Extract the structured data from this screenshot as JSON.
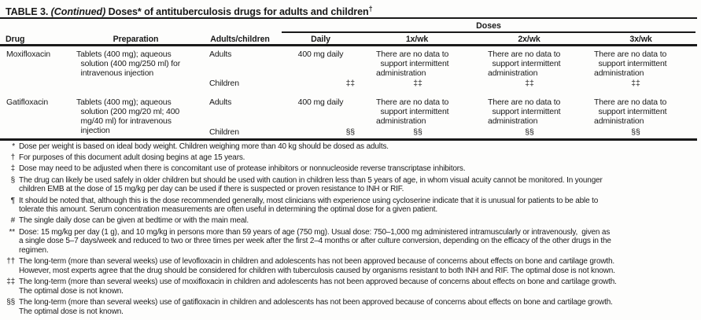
{
  "title": {
    "part1": "TABLE 3. ",
    "part2": "(Continued)",
    "part3": " Doses* of antituberculosis drugs for adults and children",
    "sup": "†"
  },
  "table": {
    "doses_header": "Doses",
    "columns": [
      "Drug",
      "Preparation",
      "Adults/children",
      "Daily",
      "1x/wk",
      "2x/wk",
      "3x/wk"
    ],
    "no_data_text": "There are no data to\n  support intermittent\nadministration",
    "rows": [
      {
        "drug": "Moxifloxacin",
        "preparation": "Tablets (400 mg); aqueous\n  solution (400 mg/250 ml) for\n  intravenous injection",
        "adults_label": "Adults",
        "children_label": "Children",
        "daily_adults": "400 mg daily",
        "children_symbol": "‡‡"
      },
      {
        "drug": "Gatifloxacin",
        "preparation": "Tablets (400 mg); aqueous\n  solution (200 mg/20 ml; 400\n  mg/40 ml) for intravenous\n  injection",
        "adults_label": "Adults",
        "children_label": "Children",
        "daily_adults": "400 mg daily",
        "children_symbol": "§§"
      }
    ]
  },
  "footnotes": [
    {
      "marker": "*",
      "text": "Dose per weight is based on ideal body weight. Children weighing more than 40 kg should be dosed as adults."
    },
    {
      "marker": "†",
      "text": "For purposes of this document adult dosing begins at age 15 years."
    },
    {
      "marker": "‡",
      "text": "Dose may need to be adjusted when there is concomitant use of protease inhibitors or nonnucleoside reverse transcriptase inhibitors."
    },
    {
      "marker": "§",
      "text": "The drug can likely be used safely in older children but should be used with caution in children less than 5 years of age, in whom visual acuity cannot be monitored. In younger\nchildren EMB at the dose of 15 mg/kg per day can be used if there is suspected or proven resistance to INH or RIF."
    },
    {
      "marker": "¶",
      "text": "It should be noted that, although this is the dose recommended generally, most clinicians with experience using cycloserine indicate that it is unusual for patients to be able to\ntolerate this amount. Serum concentration measurements are often useful in determining the optimal dose for a given patient."
    },
    {
      "marker": "#",
      "text": "The single daily dose can be given at bedtime or with the main meal."
    },
    {
      "marker": "**",
      "text": "Dose: 15 mg/kg per day (1 g), and 10 mg/kg in persons more than 59 years of age (750 mg). Usual dose: 750–1,000 mg administered intramuscularly or intravenously,  given as\na single dose 5–7 days/week and reduced to two or three times per week after the first 2–4 months or after culture conversion, depending on the efficacy of the other drugs in the\nregimen."
    },
    {
      "marker": "††",
      "text": "The long-term (more than several weeks) use of levofloxacin in children and adolescents has not been approved because of concerns about effects on bone and cartilage growth.\nHowever, most experts agree that the drug should be considered for children with tuberculosis caused by organisms resistant to both INH and RIF. The optimal dose is not known."
    },
    {
      "marker": "‡‡",
      "text": "The long-term (more than several weeks) use of moxifloxacin in children and adolescents has not been approved because of concerns about effects on bone and cartilage growth.\nThe optimal dose is not known."
    },
    {
      "marker": "§§",
      "text": "The long-term (more than several weeks) use of gatifloxacin in children and adolescents has not been approved because of concerns about effects on bone and cartilage growth.\nThe optimal dose is not known."
    }
  ]
}
